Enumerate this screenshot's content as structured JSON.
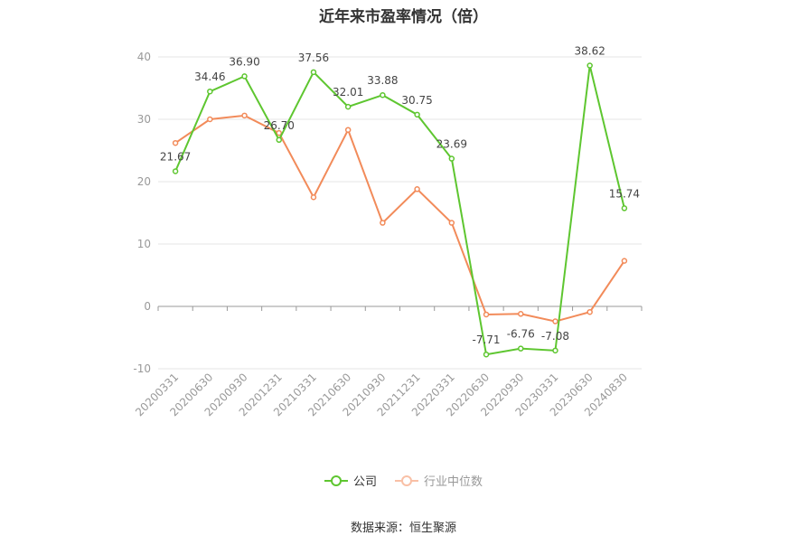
{
  "chart_data": {
    "type": "line",
    "title": "近年来市盈率情况（倍）",
    "categories": [
      "20200331",
      "20200630",
      "20200930",
      "20201231",
      "20210331",
      "20210630",
      "20210930",
      "20211231",
      "20220331",
      "20220630",
      "20220930",
      "20230331",
      "20230630",
      "20240830"
    ],
    "ylim": [
      -10,
      40
    ],
    "yticks": [
      -10,
      0,
      10,
      20,
      30,
      40
    ],
    "grid": true,
    "legend_position": "bottom",
    "series": [
      {
        "name": "公司",
        "color": "#5ec630",
        "values": [
          21.67,
          34.46,
          36.9,
          26.7,
          37.56,
          32.01,
          33.88,
          30.75,
          23.69,
          -7.71,
          -6.76,
          -7.08,
          38.62,
          15.74
        ],
        "labels": [
          "21.67",
          "34.46",
          "36.90",
          "26.70",
          "37.56",
          "32.01",
          "33.88",
          "30.75",
          "23.69",
          "-7.71",
          "-6.76",
          "-7.08",
          "38.62",
          "15.74"
        ]
      },
      {
        "name": "行业中位数",
        "color": "#f28b5a",
        "values": [
          26.2,
          30.0,
          30.6,
          27.8,
          17.5,
          28.3,
          13.4,
          18.8,
          13.4,
          -1.3,
          -1.2,
          -2.4,
          -0.9,
          7.3
        ]
      }
    ]
  },
  "source": "数据来源：恒生聚源"
}
